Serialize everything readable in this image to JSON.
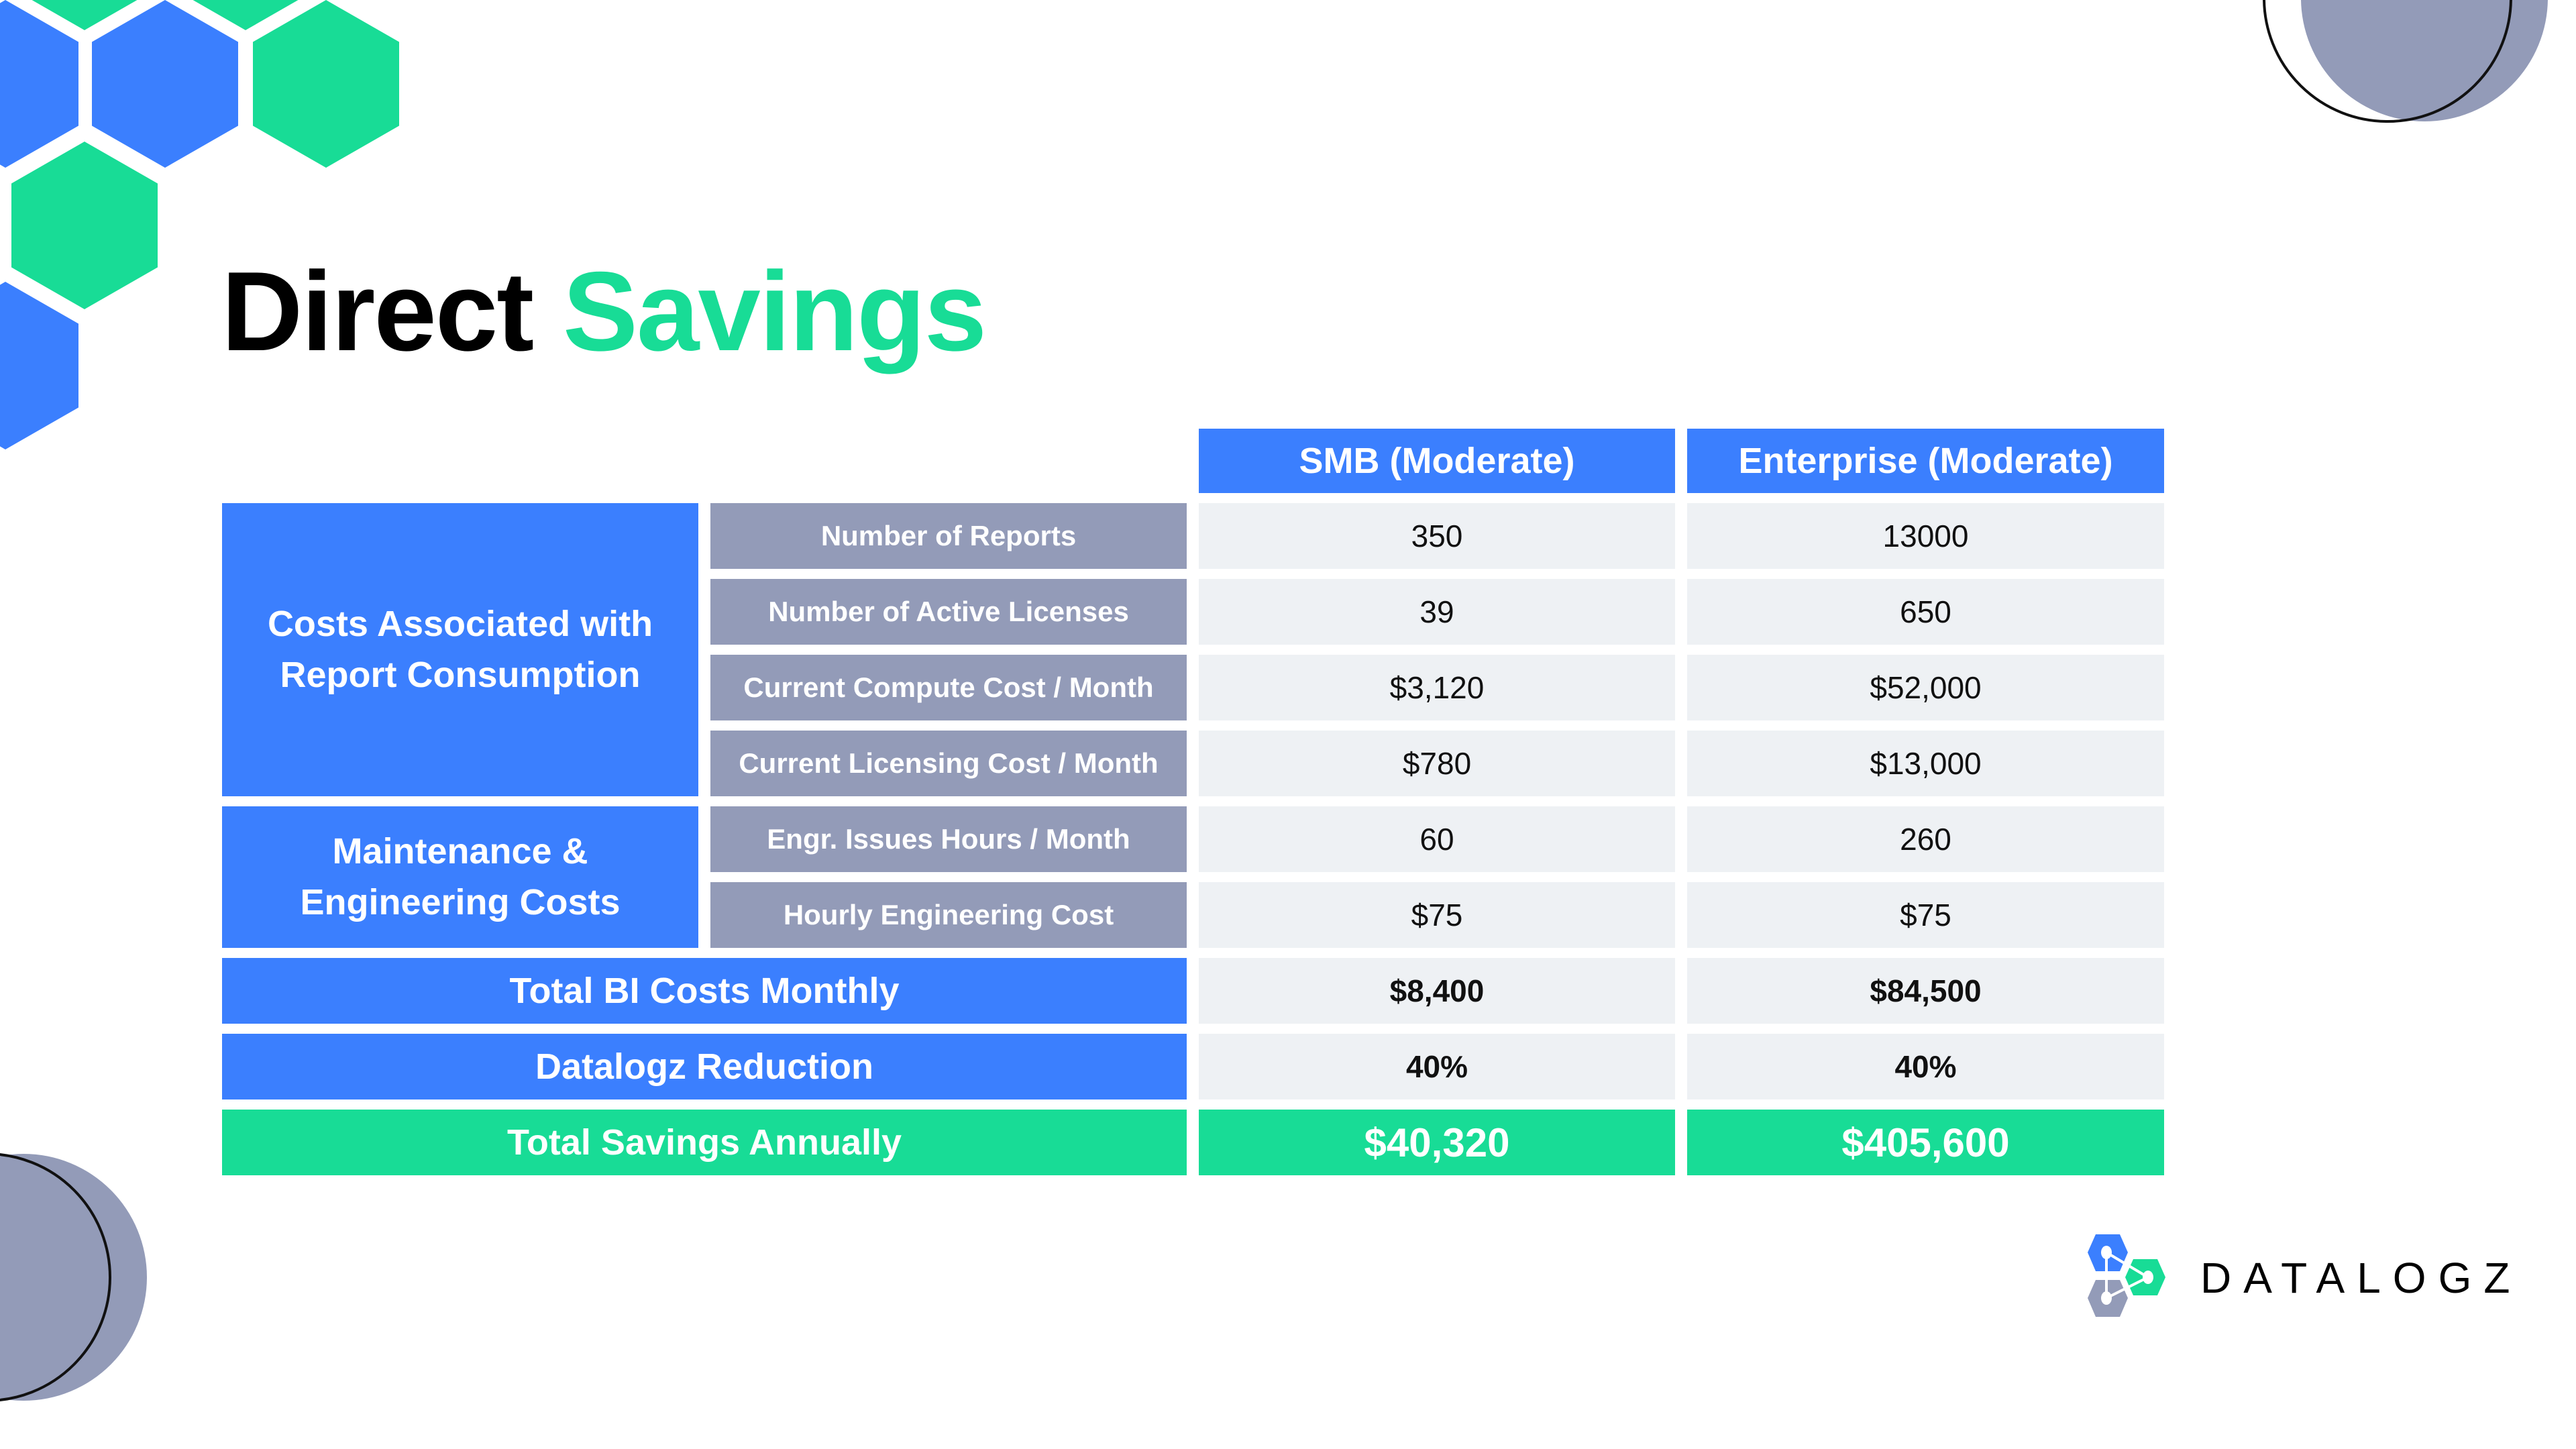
{
  "title": {
    "word1": "Direct",
    "word2": "Savings"
  },
  "colors": {
    "blue": "#3b7ffe",
    "green": "#18dc96",
    "gray": "#939bb8",
    "cell": "#eef1f4"
  },
  "table": {
    "headers": [
      "SMB (Moderate)",
      "Enterprise (Moderate)"
    ],
    "groups": [
      {
        "label": "Costs Associated with Report Consumption",
        "rows": [
          {
            "label": "Number of Reports",
            "smb": "350",
            "enterprise": "13000"
          },
          {
            "label": "Number of Active Licenses",
            "smb": "39",
            "enterprise": "650"
          },
          {
            "label": "Current Compute Cost / Month",
            "smb": "$3,120",
            "enterprise": "$52,000"
          },
          {
            "label": "Current Licensing Cost / Month",
            "smb": "$780",
            "enterprise": "$13,000"
          }
        ]
      },
      {
        "label": "Maintenance & Engineering Costs",
        "rows": [
          {
            "label": "Engr. Issues Hours / Month",
            "smb": "60",
            "enterprise": "260"
          },
          {
            "label": "Hourly Engineering Cost",
            "smb": "$75",
            "enterprise": "$75"
          }
        ]
      }
    ],
    "totals": [
      {
        "label": "Total BI Costs Monthly",
        "smb": "$8,400",
        "enterprise": "$84,500"
      },
      {
        "label": "Datalogz Reduction",
        "smb": "40%",
        "enterprise": "40%"
      },
      {
        "label": "Total Savings Annually",
        "smb": "$40,320",
        "enterprise": "$405,600"
      }
    ]
  },
  "logo": {
    "text": "DATALOGZ"
  }
}
